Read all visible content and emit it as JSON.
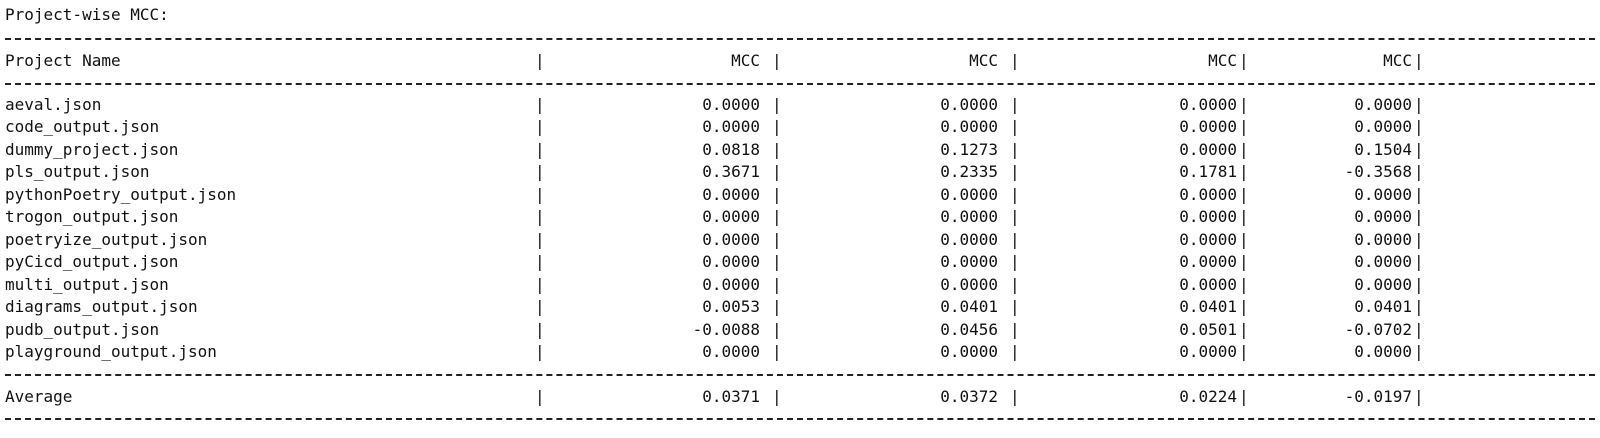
{
  "heading": "Project-wise MCC:",
  "separator_char": "-",
  "columns": [
    "Project Name",
    "MCC",
    "MCC",
    "MCC",
    "MCC"
  ],
  "column_separators": [
    "|",
    "|",
    "|",
    "|",
    "|"
  ],
  "rows": [
    {
      "name": "aeval.json",
      "values": [
        "0.0000",
        "0.0000",
        "0.0000",
        "0.0000"
      ]
    },
    {
      "name": "code_output.json",
      "values": [
        "0.0000",
        "0.0000",
        "0.0000",
        "0.0000"
      ]
    },
    {
      "name": "dummy_project.json",
      "values": [
        "0.0818",
        "0.1273",
        "0.0000",
        "0.1504"
      ]
    },
    {
      "name": "pls_output.json",
      "values": [
        "0.3671",
        "0.2335",
        "0.1781",
        "-0.3568"
      ]
    },
    {
      "name": "pythonPoetry_output.json",
      "values": [
        "0.0000",
        "0.0000",
        "0.0000",
        "0.0000"
      ]
    },
    {
      "name": "trogon_output.json",
      "values": [
        "0.0000",
        "0.0000",
        "0.0000",
        "0.0000"
      ]
    },
    {
      "name": "poetryize_output.json",
      "values": [
        "0.0000",
        "0.0000",
        "0.0000",
        "0.0000"
      ]
    },
    {
      "name": "pyCicd_output.json",
      "values": [
        "0.0000",
        "0.0000",
        "0.0000",
        "0.0000"
      ]
    },
    {
      "name": "multi_output.json",
      "values": [
        "0.0000",
        "0.0000",
        "0.0000",
        "0.0000"
      ]
    },
    {
      "name": "diagrams_output.json",
      "values": [
        "0.0053",
        "0.0401",
        "0.0401",
        "0.0401"
      ]
    },
    {
      "name": "pudb_output.json",
      "values": [
        "-0.0088",
        "0.0456",
        "0.0501",
        "-0.0702"
      ]
    },
    {
      "name": "playground_output.json",
      "values": [
        "0.0000",
        "0.0000",
        "0.0000",
        "0.0000"
      ]
    }
  ],
  "average": {
    "name": "Average",
    "values": [
      "0.0371",
      "0.0372",
      "0.0224",
      "-0.0197"
    ]
  }
}
